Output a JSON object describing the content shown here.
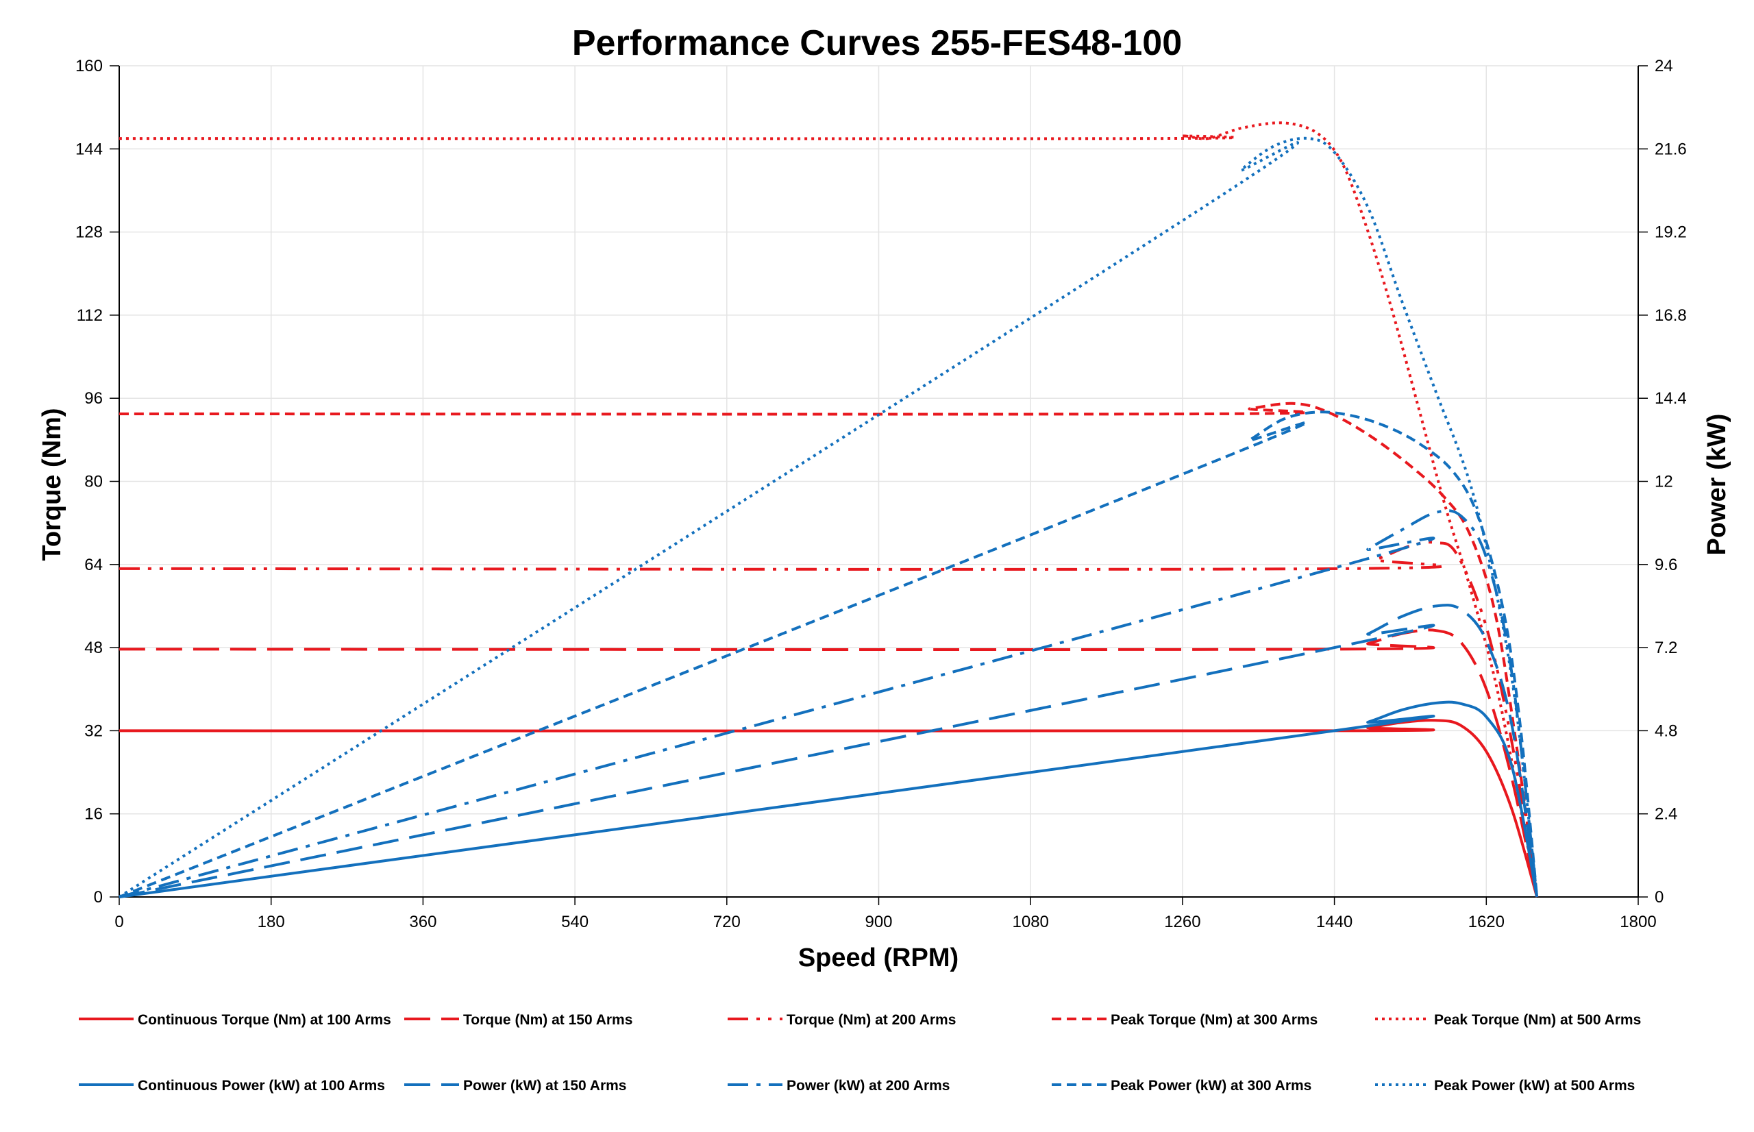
{
  "chart_data": {
    "type": "line",
    "title": "Performance Curves 255-FES48-100",
    "xlabel": "Speed (RPM)",
    "ylabel": "Torque (Nm)",
    "y2label": "Power (kW)",
    "xlim": [
      0,
      1800
    ],
    "ylim": [
      0,
      160
    ],
    "y2lim": [
      0,
      24
    ],
    "x_ticks": [
      "0",
      "180",
      "360",
      "540",
      "720",
      "900",
      "1080",
      "1260",
      "1440",
      "1620",
      "1800"
    ],
    "y_ticks": [
      "0",
      "16",
      "32",
      "48",
      "64",
      "80",
      "96",
      "112",
      "128",
      "144",
      "160"
    ],
    "y2_ticks": [
      "0",
      "2.4",
      "4.8",
      "7.2",
      "9.6",
      "12",
      "14.4",
      "16.8",
      "19.2",
      "21.6",
      "24"
    ],
    "grid": true,
    "legend_position": "bottom",
    "series": [
      {
        "name": "Continuous Torque (Nm) at 100 Arms",
        "axis": "left",
        "color": "#E8181E",
        "dash": "solid",
        "points": [
          [
            0,
            32
          ],
          [
            1440,
            32
          ],
          [
            1480,
            32.6
          ],
          [
            1520,
            33.6
          ],
          [
            1560,
            34
          ],
          [
            1590,
            33
          ],
          [
            1620,
            28
          ],
          [
            1650,
            17
          ],
          [
            1680,
            0
          ]
        ]
      },
      {
        "name": "Torque (Nm) at 150 Arms",
        "axis": "left",
        "color": "#E8181E",
        "dash": "long",
        "points": [
          [
            0,
            47.7
          ],
          [
            1440,
            47.7
          ],
          [
            1480,
            48.8
          ],
          [
            1520,
            50.7
          ],
          [
            1560,
            51.3
          ],
          [
            1590,
            49
          ],
          [
            1620,
            40
          ],
          [
            1650,
            23
          ],
          [
            1680,
            0
          ]
        ]
      },
      {
        "name": "Torque (Nm) at 200 Arms",
        "axis": "left",
        "color": "#E8181E",
        "dash": "dashdotdot",
        "points": [
          [
            0,
            63.2
          ],
          [
            1450,
            63.2
          ],
          [
            1490,
            65
          ],
          [
            1530,
            67.6
          ],
          [
            1560,
            68.2
          ],
          [
            1585,
            66
          ],
          [
            1620,
            52
          ],
          [
            1650,
            30
          ],
          [
            1680,
            0
          ]
        ]
      },
      {
        "name": "Peak Torque (Nm) at 300 Arms",
        "axis": "left",
        "color": "#E8181E",
        "dash": "short",
        "points": [
          [
            0,
            93
          ],
          [
            1300,
            93
          ],
          [
            1340,
            94
          ],
          [
            1390,
            95
          ],
          [
            1430,
            93.5
          ],
          [
            1480,
            89
          ],
          [
            1530,
            83
          ],
          [
            1570,
            77
          ],
          [
            1600,
            70
          ],
          [
            1630,
            55
          ],
          [
            1655,
            30
          ],
          [
            1680,
            0
          ]
        ]
      },
      {
        "name": "Peak Torque (Nm) at 500 Arms",
        "axis": "left",
        "color": "#E8181E",
        "dash": "dot",
        "points": [
          [
            0,
            146
          ],
          [
            1220,
            146
          ],
          [
            1260,
            146.5
          ],
          [
            1290,
            146
          ],
          [
            1330,
            148
          ],
          [
            1380,
            149
          ],
          [
            1420,
            147
          ],
          [
            1450,
            141
          ],
          [
            1480,
            128
          ],
          [
            1510,
            112
          ],
          [
            1540,
            94
          ],
          [
            1570,
            76
          ],
          [
            1600,
            60
          ],
          [
            1630,
            42
          ],
          [
            1655,
            22
          ],
          [
            1680,
            0
          ]
        ]
      },
      {
        "name": "Continuous Power (kW) at 100 Arms",
        "axis": "right",
        "color": "#1370BD",
        "dash": "solid",
        "points": [
          [
            0,
            0
          ],
          [
            1440,
            4.8
          ],
          [
            1480,
            5.05
          ],
          [
            1520,
            5.4
          ],
          [
            1560,
            5.6
          ],
          [
            1590,
            5.58
          ],
          [
            1620,
            5.2
          ],
          [
            1650,
            3.8
          ],
          [
            1680,
            0
          ]
        ]
      },
      {
        "name": "Power (kW) at 150 Arms",
        "axis": "right",
        "color": "#1370BD",
        "dash": "long",
        "points": [
          [
            0,
            0
          ],
          [
            1440,
            7.2
          ],
          [
            1480,
            7.6
          ],
          [
            1520,
            8.1
          ],
          [
            1560,
            8.4
          ],
          [
            1590,
            8.3
          ],
          [
            1620,
            7.4
          ],
          [
            1650,
            5.0
          ],
          [
            1680,
            0
          ]
        ]
      },
      {
        "name": "Power (kW) at 200 Arms",
        "axis": "right",
        "color": "#1370BD",
        "dash": "dashdot",
        "points": [
          [
            0,
            0
          ],
          [
            1440,
            9.5
          ],
          [
            1480,
            10.05
          ],
          [
            1520,
            10.6
          ],
          [
            1560,
            11.1
          ],
          [
            1590,
            11.0
          ],
          [
            1620,
            9.8
          ],
          [
            1650,
            6.5
          ],
          [
            1680,
            0
          ]
        ]
      },
      {
        "name": "Peak Power (kW) at 300 Arms",
        "axis": "right",
        "color": "#1370BD",
        "dash": "short",
        "points": [
          [
            0,
            0
          ],
          [
            1300,
            12.6
          ],
          [
            1340,
            13.2
          ],
          [
            1380,
            13.8
          ],
          [
            1420,
            14.0
          ],
          [
            1460,
            13.9
          ],
          [
            1500,
            13.6
          ],
          [
            1540,
            13.1
          ],
          [
            1580,
            12.3
          ],
          [
            1610,
            11.0
          ],
          [
            1640,
            8.3
          ],
          [
            1660,
            5.0
          ],
          [
            1680,
            0
          ]
        ]
      },
      {
        "name": "Peak Power (kW) at 500 Arms",
        "axis": "right",
        "color": "#1370BD",
        "dash": "dot",
        "points": [
          [
            0,
            0
          ],
          [
            1290,
            20.0
          ],
          [
            1330,
            21.0
          ],
          [
            1370,
            21.7
          ],
          [
            1410,
            21.9
          ],
          [
            1440,
            21.5
          ],
          [
            1480,
            19.9
          ],
          [
            1520,
            17.2
          ],
          [
            1560,
            14.6
          ],
          [
            1600,
            12.0
          ],
          [
            1630,
            9.0
          ],
          [
            1655,
            5.5
          ],
          [
            1680,
            0
          ]
        ]
      }
    ]
  }
}
